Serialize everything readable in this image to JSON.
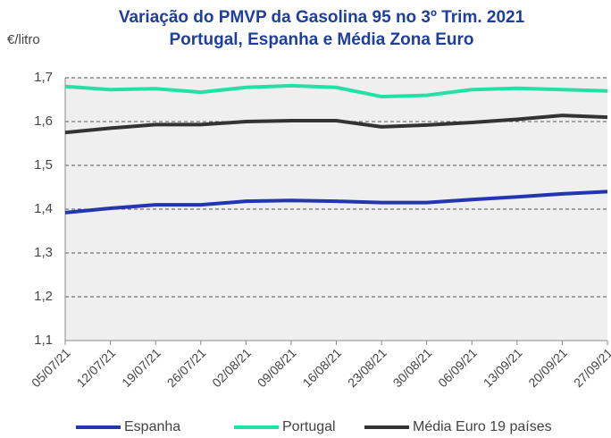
{
  "chart_data": {
    "type": "line",
    "title": "Variação do PMVP da Gasolina 95 no 3º Trim. 2021",
    "subtitle": "Portugal, Espanha e Média Zona Euro",
    "ylabel": "€/litro",
    "categories": [
      "05/07/21",
      "12/07/21",
      "19/07/21",
      "26/07/21",
      "02/08/21",
      "09/08/21",
      "16/08/21",
      "23/08/21",
      "30/08/21",
      "06/09/21",
      "13/09/21",
      "20/09/21",
      "27/09/21"
    ],
    "series": [
      {
        "name": "Espanha",
        "color": "#2336b0",
        "values": [
          1.392,
          1.402,
          1.41,
          1.41,
          1.418,
          1.42,
          1.418,
          1.415,
          1.415,
          1.422,
          1.428,
          1.435,
          1.44
        ]
      },
      {
        "name": "Portugal",
        "color": "#25e0a5",
        "values": [
          1.68,
          1.673,
          1.675,
          1.667,
          1.678,
          1.682,
          1.678,
          1.657,
          1.66,
          1.673,
          1.676,
          1.673,
          1.67
        ]
      },
      {
        "name": "Média Euro 19 países",
        "color": "#333333",
        "values": [
          1.575,
          1.585,
          1.593,
          1.593,
          1.6,
          1.602,
          1.602,
          1.588,
          1.592,
          1.598,
          1.605,
          1.614,
          1.61
        ]
      }
    ],
    "ylim": [
      1.1,
      1.7
    ],
    "yticks": [
      {
        "value": 1.1,
        "label": "1,1"
      },
      {
        "value": 1.2,
        "label": "1,2"
      },
      {
        "value": 1.3,
        "label": "1,3"
      },
      {
        "value": 1.4,
        "label": "1,4"
      },
      {
        "value": 1.5,
        "label": "1,5"
      },
      {
        "value": 1.6,
        "label": "1,6"
      },
      {
        "value": 1.7,
        "label": "1,7"
      }
    ],
    "grid": true,
    "legend": "bottom"
  }
}
